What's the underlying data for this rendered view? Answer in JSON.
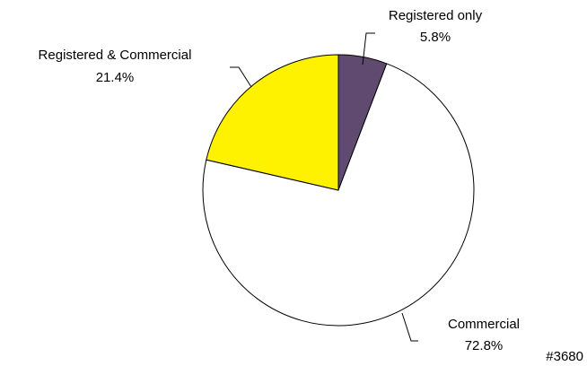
{
  "chart_data": {
    "type": "pie",
    "start_angle_deg": 0,
    "direction": "clockwise",
    "slices": [
      {
        "label": "Registered only",
        "value": 5.8,
        "display": "5.8%",
        "color": "#604a70"
      },
      {
        "label": "Commercial",
        "value": 72.8,
        "display": "72.8%",
        "color": "#ffffff"
      },
      {
        "label": "Registered & Commercial",
        "value": 21.4,
        "display": "21.4%",
        "color": "#fff200"
      }
    ]
  },
  "corner_tag": "#3680"
}
